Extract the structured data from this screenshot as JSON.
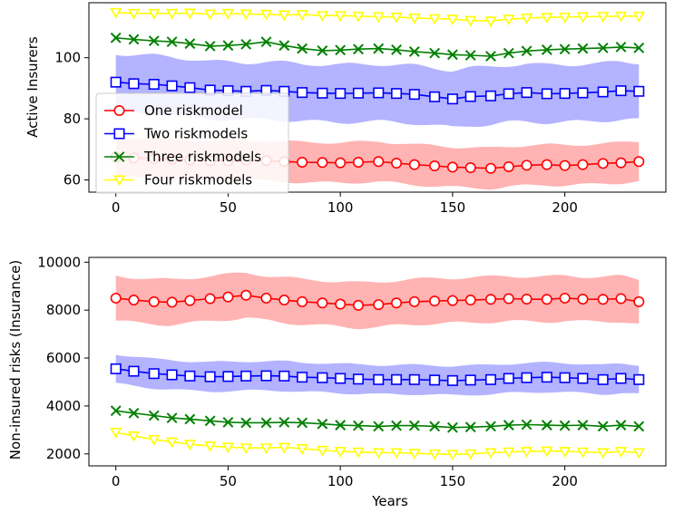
{
  "chart_data": [
    {
      "type": "line",
      "panel": "top",
      "title": "",
      "xlabel": "",
      "ylabel": "Active Insurers",
      "xlim": [
        -12,
        245
      ],
      "ylim": [
        56,
        118
      ],
      "xticks": [
        0,
        50,
        100,
        150,
        200
      ],
      "yticks": [
        60,
        80,
        100
      ],
      "grid": false,
      "legend": {
        "placement": "left-center",
        "entries": [
          "One riskmodel",
          "Two riskmodels",
          "Three riskmodels",
          "Four riskmodels"
        ]
      },
      "x": [
        0,
        8,
        17,
        25,
        33,
        42,
        50,
        58,
        67,
        75,
        83,
        92,
        100,
        108,
        117,
        125,
        133,
        142,
        150,
        158,
        167,
        175,
        183,
        192,
        200,
        208,
        217,
        225,
        233
      ],
      "series": [
        {
          "name": "One riskmodel",
          "color": "#ff0000",
          "band_color": "#ffb3b3",
          "marker": "circle",
          "band_halfwidth": 7,
          "values": [
            67.5,
            67.2,
            67.0,
            66.8,
            66.5,
            66.3,
            66.2,
            66.5,
            66.3,
            66.0,
            65.8,
            65.7,
            65.6,
            65.8,
            66.0,
            65.5,
            65.0,
            64.6,
            64.2,
            64.0,
            63.8,
            64.3,
            64.8,
            65.0,
            64.7,
            65.0,
            65.4,
            65.6,
            66.0
          ]
        },
        {
          "name": "Two riskmodels",
          "color": "#0000ff",
          "band_color": "#b3b3ff",
          "marker": "square",
          "band_halfwidth": 10,
          "values": [
            92.0,
            91.5,
            91.3,
            90.8,
            90.2,
            89.4,
            89.2,
            89.0,
            89.3,
            89.0,
            88.6,
            88.4,
            88.3,
            88.4,
            88.5,
            88.3,
            88.0,
            87.2,
            86.5,
            87.3,
            87.5,
            88.2,
            88.6,
            88.2,
            88.3,
            88.5,
            88.8,
            89.2,
            89.0
          ]
        },
        {
          "name": "Three riskmodels",
          "color": "#008000",
          "band_color": "",
          "marker": "x",
          "band_halfwidth": 0,
          "values": [
            106.5,
            106.0,
            105.5,
            105.2,
            104.6,
            103.8,
            104.0,
            104.4,
            105.2,
            104.0,
            103.0,
            102.3,
            102.5,
            102.8,
            103.0,
            102.6,
            102.0,
            101.5,
            101.0,
            100.8,
            100.5,
            101.5,
            102.2,
            102.6,
            102.8,
            103.0,
            103.2,
            103.5,
            103.2
          ]
        },
        {
          "name": "Four riskmodels",
          "color": "#ffff00",
          "band_color": "",
          "marker": "triangle-down",
          "band_halfwidth": 0,
          "values": [
            114.8,
            114.5,
            114.5,
            114.5,
            114.6,
            114.3,
            114.5,
            114.3,
            114.2,
            114.0,
            114.1,
            113.8,
            113.8,
            113.6,
            113.4,
            113.3,
            113.0,
            112.8,
            112.6,
            112.2,
            112.0,
            112.6,
            113.0,
            113.2,
            113.3,
            113.4,
            113.5,
            113.6,
            113.6
          ]
        }
      ]
    },
    {
      "type": "line",
      "panel": "bottom",
      "title": "",
      "xlabel": "Years",
      "ylabel": "Non-insured risks (Insurance)",
      "xlim": [
        -12,
        245
      ],
      "ylim": [
        1500,
        10200
      ],
      "xticks": [
        0,
        50,
        100,
        150,
        200
      ],
      "yticks": [
        2000,
        4000,
        6000,
        8000,
        10000
      ],
      "grid": false,
      "x": [
        0,
        8,
        17,
        25,
        33,
        42,
        50,
        58,
        67,
        75,
        83,
        92,
        100,
        108,
        117,
        125,
        133,
        142,
        150,
        158,
        167,
        175,
        183,
        192,
        200,
        208,
        217,
        225,
        233
      ],
      "series": [
        {
          "name": "One riskmodel",
          "color": "#ff0000",
          "band_color": "#ffb3b3",
          "marker": "circle",
          "band_halfwidth": 1000,
          "values": [
            8500,
            8420,
            8350,
            8330,
            8400,
            8480,
            8550,
            8620,
            8500,
            8420,
            8350,
            8300,
            8250,
            8200,
            8230,
            8300,
            8350,
            8380,
            8400,
            8420,
            8450,
            8480,
            8460,
            8450,
            8500,
            8460,
            8450,
            8480,
            8350
          ]
        },
        {
          "name": "Two riskmodels",
          "color": "#0000ff",
          "band_color": "#b3b3ff",
          "marker": "square",
          "band_halfwidth": 650,
          "values": [
            5550,
            5450,
            5350,
            5300,
            5250,
            5220,
            5230,
            5250,
            5260,
            5250,
            5200,
            5180,
            5150,
            5120,
            5100,
            5100,
            5100,
            5080,
            5060,
            5080,
            5100,
            5150,
            5180,
            5200,
            5180,
            5150,
            5100,
            5150,
            5100
          ]
        },
        {
          "name": "Three riskmodels",
          "color": "#008000",
          "band_color": "",
          "marker": "x",
          "band_halfwidth": 0,
          "values": [
            3800,
            3700,
            3600,
            3500,
            3450,
            3380,
            3320,
            3300,
            3300,
            3320,
            3300,
            3250,
            3200,
            3180,
            3150,
            3180,
            3180,
            3150,
            3100,
            3120,
            3150,
            3200,
            3220,
            3200,
            3180,
            3200,
            3150,
            3200,
            3150
          ]
        },
        {
          "name": "Four riskmodels",
          "color": "#ffff00",
          "band_color": "",
          "marker": "triangle-down",
          "band_halfwidth": 0,
          "values": [
            2900,
            2750,
            2600,
            2500,
            2400,
            2330,
            2280,
            2250,
            2250,
            2270,
            2220,
            2150,
            2100,
            2080,
            2050,
            2050,
            2020,
            2000,
            1980,
            2000,
            2050,
            2080,
            2100,
            2120,
            2100,
            2080,
            2050,
            2100,
            2050
          ]
        }
      ]
    }
  ]
}
